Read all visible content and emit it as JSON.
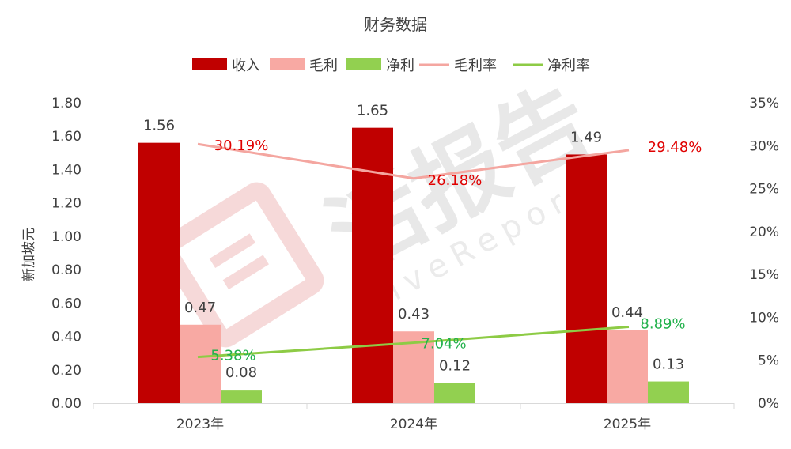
{
  "chart_data": {
    "type": "bar",
    "title": "财务数据",
    "ylabel": "新加坡元",
    "y2label": "",
    "categories": [
      "2023年",
      "2024年",
      "2025年"
    ],
    "ylim": [
      0,
      1.8
    ],
    "y_ticks": [
      "0.00",
      "0.20",
      "0.40",
      "0.60",
      "0.80",
      "1.00",
      "1.20",
      "1.40",
      "1.60",
      "1.80"
    ],
    "y2lim": [
      0,
      35
    ],
    "y2_ticks": [
      "0%",
      "5%",
      "10%",
      "15%",
      "20%",
      "25%",
      "30%",
      "35%"
    ],
    "grid": false,
    "legend_position": "top-center",
    "bar_series": [
      {
        "name": "收入",
        "color": "#C00000",
        "values": [
          1.56,
          1.65,
          1.49
        ],
        "labels": [
          "1.56",
          "1.65",
          "1.49"
        ]
      },
      {
        "name": "毛利",
        "color": "#F8A9A3",
        "values": [
          0.47,
          0.43,
          0.44
        ],
        "labels": [
          "0.47",
          "0.43",
          "0.44"
        ]
      },
      {
        "name": "净利",
        "color": "#92D050",
        "values": [
          0.08,
          0.12,
          0.13
        ],
        "labels": [
          "0.08",
          "0.12",
          "0.13"
        ]
      }
    ],
    "line_series": [
      {
        "name": "毛利率",
        "color": "#F4A6A0",
        "label_color": "#E00000",
        "axis": "right",
        "values": [
          30.19,
          26.18,
          29.48
        ],
        "labels": [
          "30.19%",
          "26.18%",
          "29.48%"
        ]
      },
      {
        "name": "净利率",
        "color": "#8DCB45",
        "label_color": "#22B14C",
        "axis": "right",
        "values": [
          5.38,
          7.04,
          8.89
        ],
        "labels": [
          "5.38%",
          "7.04%",
          "8.89%"
        ]
      }
    ]
  },
  "watermark": {
    "text": "活报告",
    "subtext": "LiveReport",
    "color": "#E8E8E8"
  }
}
